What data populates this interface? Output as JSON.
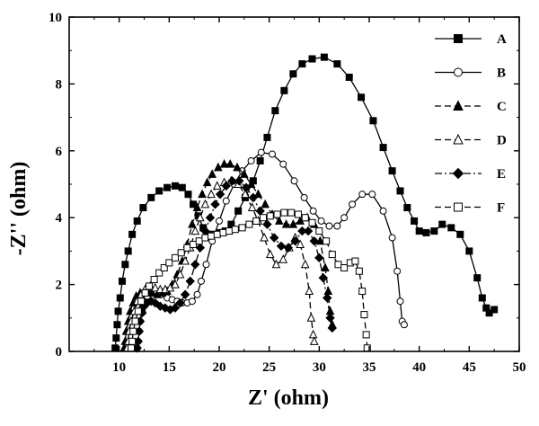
{
  "chart_data": {
    "type": "line",
    "xlabel": "Z' (ohm)",
    "ylabel": "-Z'' (ohm)",
    "xlim": [
      5,
      50
    ],
    "ylim": [
      0,
      10
    ],
    "xticks": [
      10,
      15,
      20,
      25,
      30,
      35,
      40,
      45,
      50
    ],
    "yticks": [
      0,
      2,
      4,
      6,
      8,
      10
    ],
    "legend_position": "top-right",
    "grid": false,
    "series": [
      {
        "name": "A",
        "marker": "square",
        "filled": true,
        "dash": "solid",
        "x": [
          9.6,
          9.7,
          9.8,
          9.9,
          10.1,
          10.3,
          10.6,
          10.9,
          11.3,
          11.8,
          12.4,
          13.2,
          14.0,
          14.8,
          15.6,
          16.3,
          16.9,
          17.4,
          17.9,
          18.4,
          18.9,
          19.4,
          20.0,
          20.6,
          21.2,
          21.9,
          22.6,
          23.4,
          24.1,
          24.8,
          25.6,
          26.5,
          27.4,
          28.3,
          29.3,
          30.5,
          31.8,
          33.0,
          34.2,
          35.4,
          36.4,
          37.3,
          38.1,
          38.8,
          39.5,
          40.0,
          40.7,
          41.5,
          42.3,
          43.2,
          44.1,
          45.0,
          45.8,
          46.3,
          46.7,
          47.0,
          47.5
        ],
        "y": [
          0.1,
          0.4,
          0.8,
          1.2,
          1.6,
          2.1,
          2.6,
          3.0,
          3.5,
          3.9,
          4.3,
          4.6,
          4.8,
          4.9,
          4.95,
          4.9,
          4.7,
          4.4,
          4.05,
          3.7,
          3.5,
          3.5,
          3.55,
          3.6,
          3.8,
          4.2,
          4.6,
          5.1,
          5.7,
          6.4,
          7.2,
          7.8,
          8.3,
          8.6,
          8.75,
          8.8,
          8.6,
          8.2,
          7.6,
          6.9,
          6.1,
          5.4,
          4.8,
          4.3,
          3.9,
          3.6,
          3.55,
          3.6,
          3.8,
          3.7,
          3.5,
          3.0,
          2.2,
          1.6,
          1.3,
          1.15,
          1.25
        ]
      },
      {
        "name": "B",
        "marker": "circle",
        "filled": false,
        "dash": "solid",
        "x": [
          11.8,
          11.9,
          12.0,
          12.1,
          12.3,
          12.5,
          12.8,
          13.2,
          13.7,
          14.2,
          14.8,
          15.3,
          15.8,
          16.3,
          16.8,
          17.3,
          17.8,
          18.2,
          18.7,
          19.3,
          20.0,
          20.7,
          21.5,
          22.3,
          23.2,
          24.2,
          25.3,
          26.4,
          27.5,
          28.5,
          29.4,
          30.2,
          31.0,
          31.8,
          32.5,
          33.3,
          34.3,
          35.3,
          36.4,
          37.3,
          37.8,
          38.1,
          38.3,
          38.5
        ],
        "y": [
          0.1,
          0.3,
          0.6,
          0.9,
          1.2,
          1.45,
          1.65,
          1.75,
          1.8,
          1.7,
          1.6,
          1.55,
          1.5,
          1.45,
          1.45,
          1.5,
          1.7,
          2.1,
          2.6,
          3.3,
          3.9,
          4.5,
          5.0,
          5.4,
          5.7,
          5.95,
          5.9,
          5.6,
          5.1,
          4.6,
          4.2,
          3.9,
          3.75,
          3.75,
          4.0,
          4.4,
          4.7,
          4.7,
          4.2,
          3.4,
          2.4,
          1.5,
          0.9,
          0.8
        ]
      },
      {
        "name": "C",
        "marker": "triangle",
        "filled": true,
        "dash": "dash",
        "x": [
          10.5,
          10.6,
          10.7,
          10.9,
          11.1,
          11.4,
          11.7,
          12.1,
          12.5,
          12.9,
          13.3,
          13.8,
          14.3,
          14.8,
          15.3,
          15.8,
          16.3,
          16.8,
          17.3,
          17.8,
          18.3,
          18.8,
          19.3,
          19.9,
          20.5,
          21.1,
          21.8,
          22.5,
          23.2,
          23.9,
          24.6,
          25.3,
          26.0,
          26.7,
          27.4,
          28.1,
          28.8,
          29.5,
          30.1,
          30.6,
          30.9,
          31.1,
          31.3
        ],
        "y": [
          0.1,
          0.3,
          0.6,
          0.9,
          1.2,
          1.45,
          1.65,
          1.75,
          1.8,
          1.8,
          1.75,
          1.7,
          1.75,
          1.8,
          2.0,
          2.3,
          2.7,
          3.2,
          3.8,
          4.3,
          4.7,
          5.05,
          5.3,
          5.5,
          5.6,
          5.6,
          5.5,
          5.3,
          5.0,
          4.7,
          4.4,
          4.1,
          3.9,
          3.8,
          3.8,
          3.9,
          4.0,
          3.8,
          3.3,
          2.5,
          1.8,
          1.2,
          0.8
        ]
      },
      {
        "name": "D",
        "marker": "triangle",
        "filled": false,
        "dash": "dash",
        "x": [
          10.8,
          10.9,
          11.0,
          11.2,
          11.5,
          11.8,
          12.2,
          12.6,
          13.1,
          13.6,
          14.1,
          14.6,
          15.1,
          15.6,
          16.1,
          16.6,
          17.1,
          17.6,
          18.1,
          18.6,
          19.2,
          19.8,
          20.5,
          21.2,
          21.9,
          22.6,
          23.3,
          23.9,
          24.5,
          25.1,
          25.7,
          26.4,
          27.0,
          27.6,
          28.1,
          28.6,
          29.0,
          29.2,
          29.4,
          29.5
        ],
        "y": [
          0.1,
          0.3,
          0.6,
          0.9,
          1.2,
          1.5,
          1.7,
          1.85,
          1.95,
          1.9,
          1.85,
          1.85,
          1.9,
          2.0,
          2.3,
          2.7,
          3.1,
          3.6,
          4.0,
          4.4,
          4.7,
          4.95,
          5.05,
          5.1,
          5.0,
          4.7,
          4.3,
          3.9,
          3.4,
          2.9,
          2.6,
          2.75,
          3.1,
          3.4,
          3.2,
          2.6,
          1.8,
          1.0,
          0.5,
          0.3
        ]
      },
      {
        "name": "E",
        "marker": "diamond",
        "filled": true,
        "dash": "dashdot",
        "x": [
          11.8,
          11.9,
          12.0,
          12.1,
          12.3,
          12.5,
          12.8,
          13.2,
          13.6,
          14.1,
          14.6,
          15.1,
          15.6,
          16.1,
          16.6,
          17.1,
          17.6,
          18.1,
          18.6,
          19.1,
          19.6,
          20.1,
          20.7,
          21.3,
          22.0,
          22.7,
          23.4,
          24.1,
          24.8,
          25.5,
          26.2,
          26.9,
          27.6,
          28.3,
          28.9,
          29.5,
          30.0,
          30.4,
          30.8,
          31.1,
          31.3
        ],
        "y": [
          0.1,
          0.3,
          0.6,
          0.9,
          1.15,
          1.35,
          1.45,
          1.5,
          1.45,
          1.35,
          1.3,
          1.25,
          1.3,
          1.45,
          1.7,
          2.1,
          2.6,
          3.1,
          3.6,
          4.0,
          4.4,
          4.7,
          4.95,
          5.1,
          5.1,
          4.9,
          4.6,
          4.2,
          3.8,
          3.4,
          3.15,
          3.1,
          3.3,
          3.6,
          3.6,
          3.3,
          2.8,
          2.2,
          1.6,
          1.0,
          0.7
        ]
      },
      {
        "name": "F",
        "marker": "square",
        "filled": false,
        "dash": "dash",
        "x": [
          11.2,
          11.3,
          11.4,
          11.6,
          11.9,
          12.2,
          12.6,
          13.0,
          13.5,
          14.0,
          14.5,
          15.0,
          15.6,
          16.2,
          16.8,
          17.4,
          18.0,
          18.6,
          19.2,
          19.8,
          20.4,
          21.0,
          21.6,
          22.3,
          23.0,
          23.7,
          24.4,
          25.1,
          25.8,
          26.5,
          27.2,
          27.9,
          28.6,
          29.3,
          30.0,
          30.7,
          31.3,
          31.9,
          32.5,
          33.1,
          33.6,
          34.0,
          34.3,
          34.5,
          34.7,
          34.8
        ],
        "y": [
          0.1,
          0.3,
          0.6,
          0.9,
          1.2,
          1.5,
          1.75,
          1.95,
          2.15,
          2.35,
          2.5,
          2.65,
          2.8,
          2.95,
          3.1,
          3.2,
          3.3,
          3.4,
          3.45,
          3.5,
          3.55,
          3.6,
          3.65,
          3.7,
          3.8,
          3.9,
          4.0,
          4.05,
          4.1,
          4.15,
          4.15,
          4.1,
          4.0,
          3.85,
          3.6,
          3.3,
          2.9,
          2.6,
          2.5,
          2.65,
          2.7,
          2.4,
          1.8,
          1.1,
          0.5,
          0.1
        ]
      }
    ]
  }
}
